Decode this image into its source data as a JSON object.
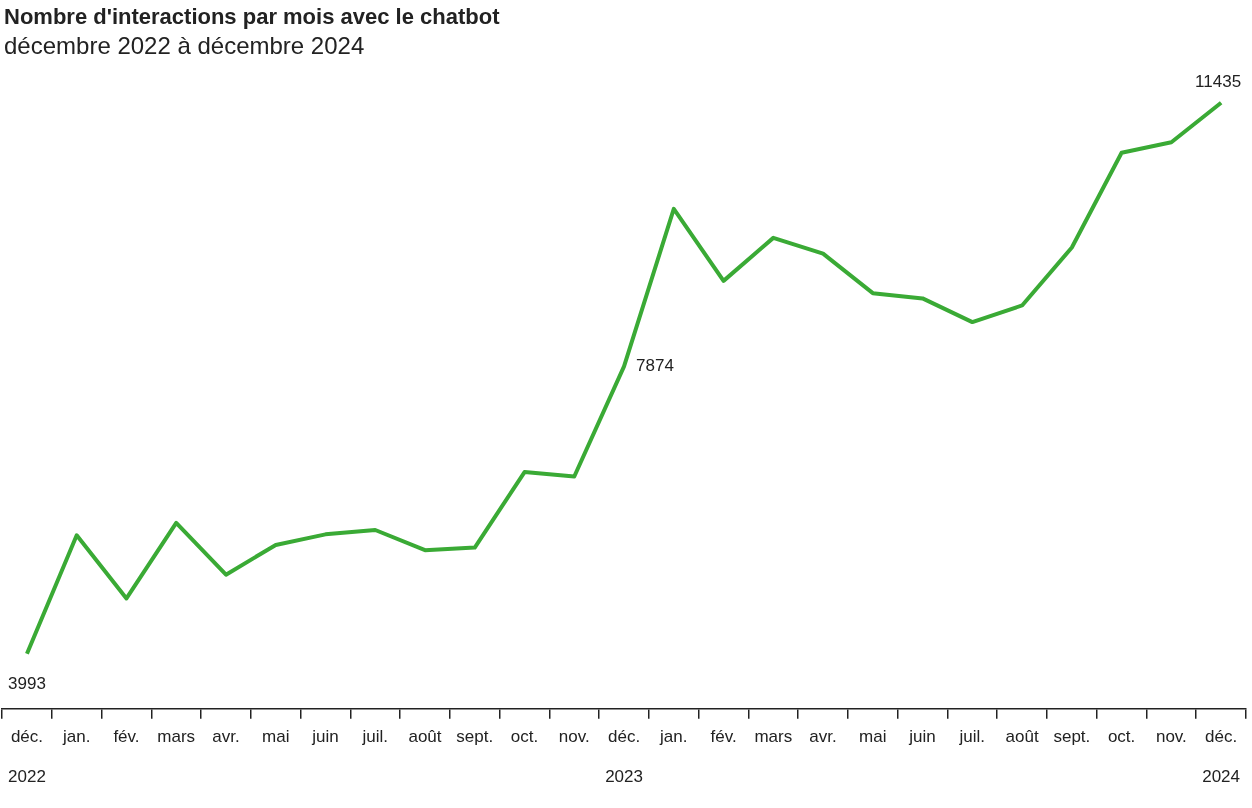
{
  "chart_data": {
    "type": "line",
    "title": "Nombre d'interactions par mois avec le chatbot",
    "subtitle": "décembre 2022 à décembre 2024",
    "categories": [
      "déc. 2022",
      "jan.",
      "fév.",
      "mars",
      "avr.",
      "mai",
      "juin",
      "juil.",
      "août",
      "sept.",
      "oct.",
      "nov.",
      "déc. 2023",
      "jan.",
      "fév.",
      "mars",
      "avr.",
      "mai",
      "juin",
      "juil.",
      "août",
      "sept.",
      "oct.",
      "nov.",
      "déc. 2024"
    ],
    "series": [
      {
        "color": "#3aaa35",
        "values": [
          3993,
          5593,
          4740,
          5759,
          5060,
          5462,
          5605,
          5664,
          5391,
          5427,
          6446,
          6387,
          7874,
          10001,
          9029,
          9610,
          9397,
          8863,
          8792,
          8472,
          8697,
          9480,
          10759,
          10902,
          11435
        ],
        "value_labels": [
          "3993",
          null,
          null,
          null,
          null,
          null,
          null,
          null,
          null,
          null,
          null,
          null,
          "7874",
          null,
          null,
          null,
          null,
          null,
          null,
          null,
          null,
          null,
          null,
          null,
          "11435"
        ]
      }
    ]
  }
}
